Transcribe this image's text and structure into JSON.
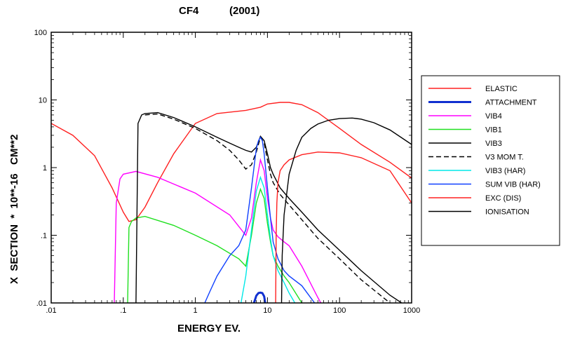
{
  "chart_data": {
    "type": "line",
    "title": "CF4",
    "subtitle": "(2001)",
    "xlabel": "ENERGY EV.",
    "ylabel": "X  SECTION  *  10**-16   CM**2",
    "xscale": "log",
    "yscale": "log",
    "xlim": [
      0.01,
      1000
    ],
    "ylim": [
      0.01,
      100
    ],
    "x_tick_labels": [
      ".01",
      ".1",
      "1",
      "10",
      "100",
      "1000"
    ],
    "y_tick_labels": [
      ".01",
      ".1",
      "1",
      "10",
      "100"
    ],
    "legend_placement": "right",
    "series": [
      {
        "name": "ELASTIC",
        "color": "#ff2020",
        "dash": "",
        "x": [
          0.01,
          0.02,
          0.04,
          0.07,
          0.1,
          0.12,
          0.15,
          0.2,
          0.3,
          0.5,
          1,
          2,
          5,
          8,
          10,
          15,
          20,
          30,
          50,
          100,
          200,
          500,
          1000
        ],
        "y": [
          4.5,
          3.0,
          1.5,
          0.5,
          0.22,
          0.16,
          0.17,
          0.26,
          0.6,
          1.6,
          4.5,
          6.3,
          7.0,
          7.8,
          8.7,
          9.2,
          9.2,
          8.5,
          6.5,
          3.8,
          2.2,
          1.2,
          0.7
        ]
      },
      {
        "name": "ATTACHMENT",
        "color": "#1030d0",
        "dash": "",
        "x": [
          6.5,
          7,
          7.5,
          8,
          8.5,
          9,
          9.3
        ],
        "y": [
          0.01,
          0.0128,
          0.014,
          0.0142,
          0.014,
          0.0125,
          0.01
        ]
      },
      {
        "name": "VIB4",
        "color": "#ff00ff",
        "dash": "",
        "x": [
          0.075,
          0.08,
          0.09,
          0.1,
          0.15,
          0.3,
          1,
          3,
          5,
          6,
          7,
          8,
          9,
          10,
          11,
          12,
          14,
          17,
          20,
          30,
          50,
          55
        ],
        "y": [
          0.01,
          0.3,
          0.68,
          0.8,
          0.88,
          0.72,
          0.42,
          0.2,
          0.1,
          0.18,
          0.6,
          1.3,
          0.9,
          0.35,
          0.18,
          0.12,
          0.095,
          0.08,
          0.07,
          0.035,
          0.012,
          0.01
        ]
      },
      {
        "name": "VIB1",
        "color": "#20e020",
        "dash": "",
        "x": [
          0.115,
          0.12,
          0.13,
          0.15,
          0.2,
          0.5,
          1,
          2,
          4,
          5,
          6,
          7,
          8,
          9,
          10,
          11,
          12,
          14,
          17,
          20,
          30
        ],
        "y": [
          0.01,
          0.13,
          0.16,
          0.18,
          0.19,
          0.14,
          0.1,
          0.07,
          0.045,
          0.035,
          0.1,
          0.3,
          0.48,
          0.35,
          0.15,
          0.08,
          0.05,
          0.035,
          0.025,
          0.02,
          0.01
        ]
      },
      {
        "name": "VIB3",
        "color": "#000000",
        "dash": "",
        "x": [
          0.15,
          0.16,
          0.18,
          0.2,
          0.3,
          0.5,
          1,
          2,
          3,
          4,
          5,
          6,
          7,
          8,
          9,
          10,
          11,
          12,
          15,
          20,
          30,
          50,
          100,
          200,
          500,
          1000
        ],
        "y": [
          0.01,
          4.5,
          6.0,
          6.3,
          6.5,
          5.5,
          4.0,
          2.8,
          2.3,
          2.0,
          1.8,
          1.7,
          2.0,
          2.9,
          2.5,
          1.6,
          1.0,
          0.8,
          0.5,
          0.35,
          0.22,
          0.12,
          0.06,
          0.03,
          0.013,
          0.008
        ]
      },
      {
        "name": "V3 MOM T.",
        "color": "#000000",
        "dash": "7 4",
        "x": [
          0.2,
          0.3,
          0.5,
          1,
          2,
          3,
          4,
          5,
          6,
          7,
          8,
          9,
          10,
          11,
          12,
          15,
          20,
          30,
          50,
          100,
          200,
          500,
          900
        ],
        "y": [
          6.0,
          6.2,
          5.2,
          3.8,
          2.5,
          1.8,
          1.3,
          0.95,
          1.1,
          1.7,
          2.8,
          2.3,
          1.3,
          0.8,
          0.6,
          0.4,
          0.28,
          0.17,
          0.09,
          0.045,
          0.022,
          0.01,
          0.007
        ]
      },
      {
        "name": "VIB3 (HAR)",
        "color": "#00e8e8",
        "dash": "",
        "x": [
          4.3,
          5,
          6,
          7,
          8,
          9,
          10,
          11,
          12,
          14,
          17,
          20,
          24
        ],
        "y": [
          0.01,
          0.025,
          0.12,
          0.45,
          0.72,
          0.5,
          0.2,
          0.09,
          0.05,
          0.03,
          0.02,
          0.014,
          0.01
        ]
      },
      {
        "name": "SUM VIB (HAR)",
        "color": "#1040ff",
        "dash": "",
        "x": [
          1.35,
          1.6,
          2,
          3,
          4,
          5,
          6,
          7,
          7.5,
          8,
          8.5,
          9,
          10,
          11,
          12,
          14,
          17,
          20,
          30,
          45
        ],
        "y": [
          0.01,
          0.015,
          0.025,
          0.05,
          0.07,
          0.12,
          0.5,
          1.9,
          2.5,
          2.8,
          2.5,
          1.6,
          0.5,
          0.18,
          0.08,
          0.045,
          0.03,
          0.025,
          0.018,
          0.01
        ]
      },
      {
        "name": "EXC (DIS)",
        "color": "#ff2020",
        "dash": "",
        "x": [
          13,
          13.2,
          13.5,
          14,
          15,
          17,
          20,
          30,
          50,
          100,
          200,
          500,
          1000
        ],
        "y": [
          0.01,
          0.1,
          0.3,
          0.6,
          0.9,
          1.1,
          1.3,
          1.55,
          1.7,
          1.65,
          1.4,
          0.9,
          0.3
        ]
      },
      {
        "name": "IONISATION",
        "color": "#000000",
        "dash": "",
        "x": [
          15.7,
          16,
          17,
          20,
          25,
          30,
          40,
          50,
          70,
          100,
          150,
          200,
          300,
          500,
          1000
        ],
        "y": [
          0.01,
          0.05,
          0.2,
          0.8,
          1.8,
          2.8,
          3.8,
          4.4,
          5.0,
          5.3,
          5.4,
          5.2,
          4.6,
          3.6,
          2.2
        ]
      }
    ]
  }
}
